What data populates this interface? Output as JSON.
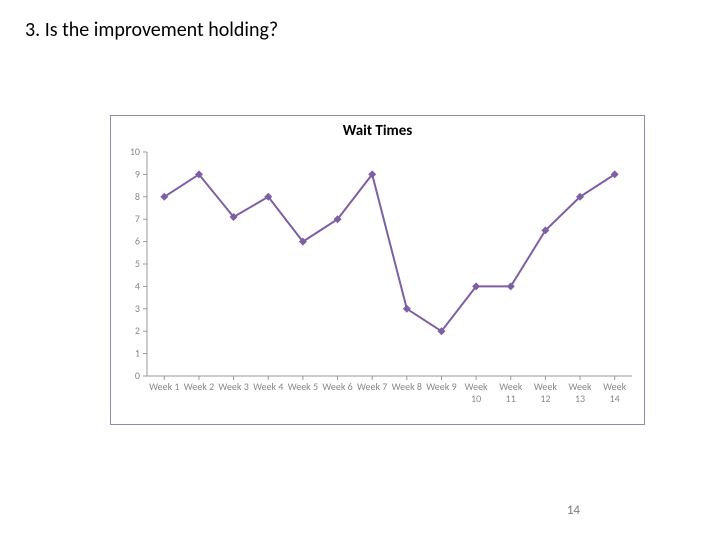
{
  "heading": "3. Is the improvement holding?",
  "page_number": "14",
  "chart": {
    "type": "line",
    "title": "Wait Times",
    "title_fontsize": 15,
    "title_weight": "bold",
    "border_color": "#8a8fb2",
    "background_color": "#ffffff",
    "line_color": "#7d5fa3",
    "marker_color": "#7d5fa3",
    "marker_style": "diamond",
    "marker_size": 8,
    "line_width": 2,
    "axis_color": "#999999",
    "tick_label_color": "#888888",
    "tick_fontsize": 10,
    "ylim": [
      0,
      10
    ],
    "ytick_step": 1,
    "yticks": [
      0,
      1,
      2,
      3,
      4,
      5,
      6,
      7,
      8,
      9,
      10
    ],
    "categories": [
      "Week 1",
      "Week 2",
      "Week 3",
      "Week 4",
      "Week 5",
      "Week 6",
      "Week 7",
      "Week 8",
      "Week 9",
      "Week 10",
      "Week 11",
      "Week 12",
      "Week 13",
      "Week 14"
    ],
    "values": [
      8,
      9,
      7.1,
      8,
      6,
      7,
      9,
      3,
      2,
      4,
      4,
      6.5,
      8,
      9
    ]
  }
}
